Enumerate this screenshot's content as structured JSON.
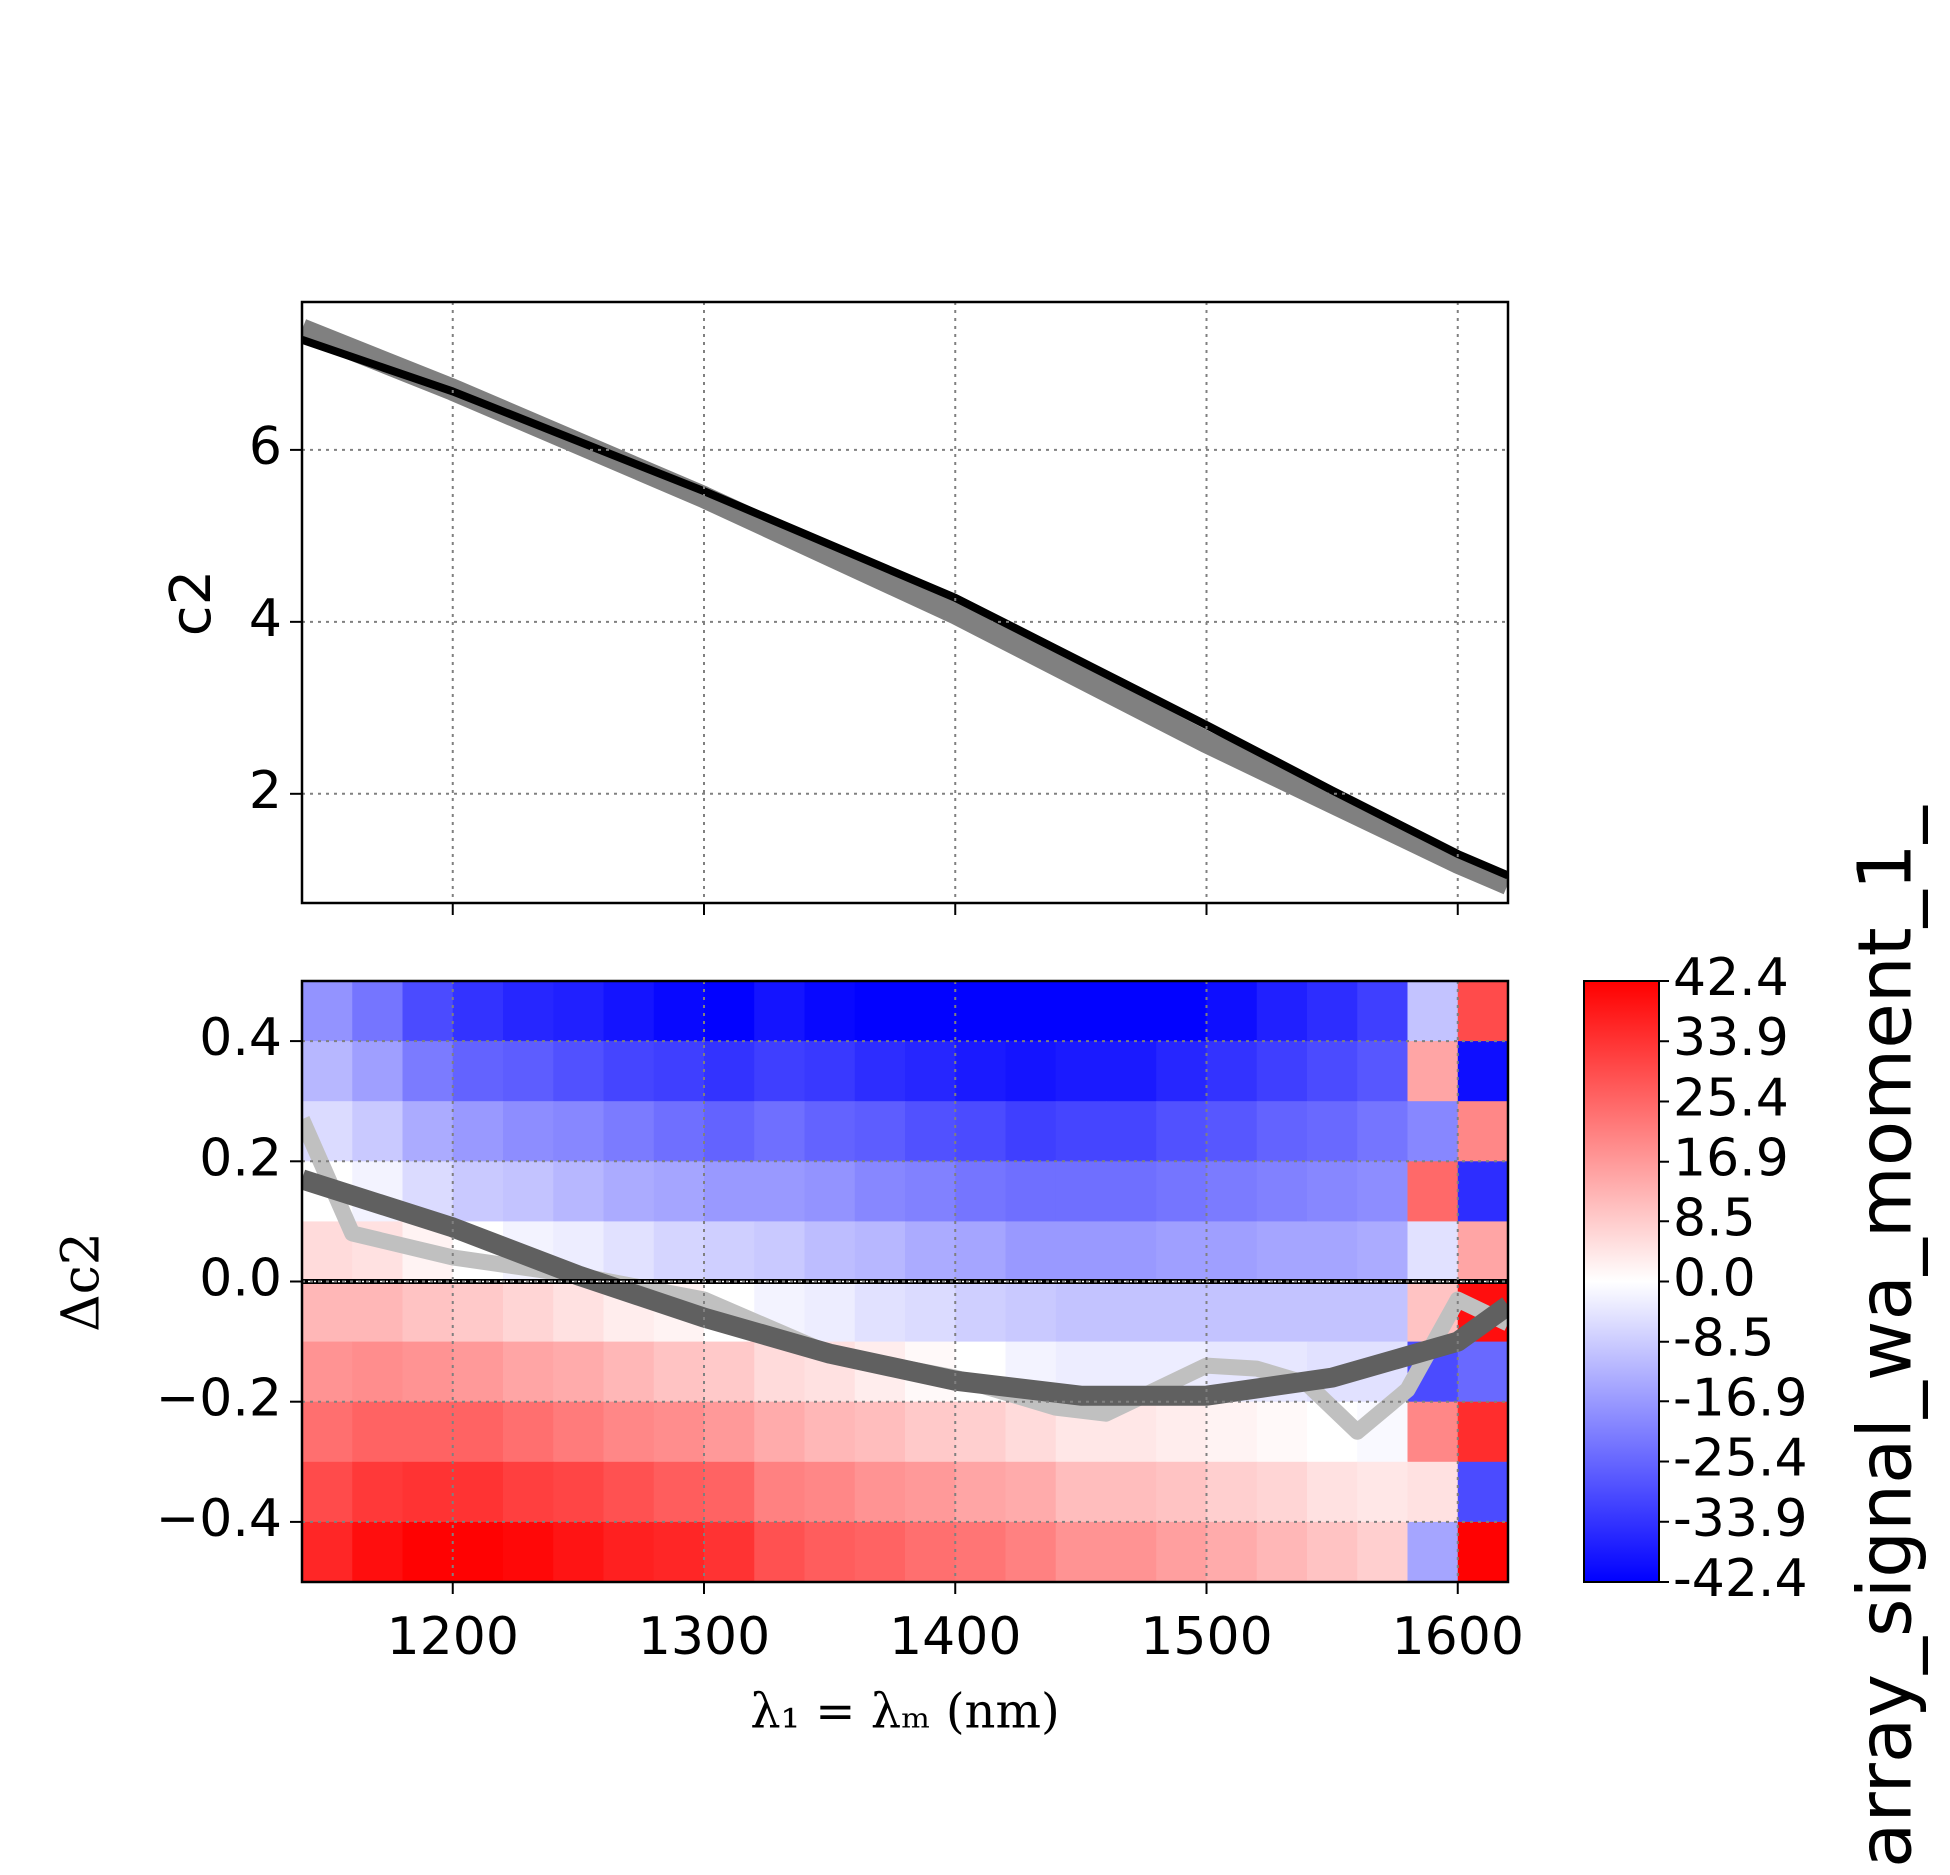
{
  "chart_data": [
    {
      "type": "line",
      "ylabel": "c2",
      "xlim": [
        1140,
        1620
      ],
      "xticks": [
        1200,
        1300,
        1400,
        1500,
        1600
      ],
      "xtick_labels": false,
      "ylim": [
        0.73,
        7.72
      ],
      "yticks": [
        2,
        4,
        6
      ],
      "grid": true,
      "series": [
        {
          "color": "#808080",
          "width": 22,
          "x": [
            1140,
            1200,
            1300,
            1400,
            1500,
            1550,
            1600,
            1620
          ],
          "values": [
            7.4,
            6.7,
            5.45,
            4.1,
            2.6,
            1.9,
            1.2,
            0.95
          ]
        },
        {
          "color": "#000000",
          "width": 8,
          "x": [
            1140,
            1200,
            1300,
            1400,
            1500,
            1550,
            1600,
            1620
          ],
          "values": [
            7.28,
            6.68,
            5.52,
            4.28,
            2.8,
            2.04,
            1.3,
            1.05
          ]
        }
      ]
    },
    {
      "type": "heatmap",
      "ylabel": "Δc2",
      "xlabel": "λ₁ = λₘ (nm)",
      "colorbar_label": "array_signal_wa_moment_1_",
      "xlim": [
        1140,
        1620
      ],
      "xticks": [
        1200,
        1300,
        1400,
        1500,
        1600
      ],
      "ylim": [
        -0.5,
        0.5
      ],
      "yticks": [
        {
          "value": -0.4,
          "label": "−0.4"
        },
        {
          "value": -0.2,
          "label": "−0.2"
        },
        {
          "value": 0,
          "label": "0.0"
        },
        0.2,
        0.4
      ],
      "grid": true,
      "hline": 0,
      "clim": [
        -42.4,
        42.4
      ],
      "cmap": [
        "#0000ff",
        "#ffffff",
        "#ff0000"
      ],
      "cticks": [
        -42.4,
        -33.9,
        -25.4,
        -16.9,
        -8.5,
        {
          "value": 0,
          "label": "0.0"
        },
        8.5,
        16.9,
        25.4,
        33.9,
        42.4
      ],
      "x": [
        1140,
        1160,
        1180,
        1200,
        1220,
        1240,
        1260,
        1280,
        1300,
        1320,
        1340,
        1360,
        1380,
        1400,
        1420,
        1440,
        1460,
        1480,
        1500,
        1520,
        1540,
        1560,
        1580,
        1600,
        1620
      ],
      "y": [
        0.5,
        0.4,
        0.3,
        0.2,
        0.1,
        0,
        -0.1,
        -0.2,
        -0.3,
        -0.4,
        -0.5
      ],
      "z": [
        [
          -18,
          -23,
          -30,
          -34,
          -36,
          -37,
          -39,
          -41,
          -42,
          -39,
          -41,
          -42,
          -42,
          -42,
          -42,
          -42,
          -42,
          -42,
          -40,
          -37,
          -35,
          -32,
          -10,
          30
        ],
        [
          -12,
          -16,
          -22,
          -26,
          -27,
          -29,
          -31,
          -32,
          -34,
          -32,
          -33,
          -35,
          -36,
          -38,
          -39,
          -38,
          -38,
          -36,
          -34,
          -32,
          -30,
          -28,
          15,
          -40
        ],
        [
          -6,
          -9,
          -14,
          -17,
          -19,
          -20,
          -22,
          -24,
          -26,
          -24,
          -26,
          -27,
          -29,
          -30,
          -32,
          -31,
          -31,
          -29,
          -28,
          -26,
          -25,
          -23,
          -20,
          20
        ],
        [
          0,
          -2,
          -6,
          -9,
          -10,
          -12,
          -14,
          -15,
          -17,
          -17,
          -18,
          -20,
          -21,
          -23,
          -24,
          -24,
          -24,
          -23,
          -22,
          -21,
          -20,
          -19,
          25,
          -35
        ],
        [
          6,
          5,
          2,
          0,
          -2,
          -3,
          -5,
          -7,
          -8,
          -9,
          -11,
          -12,
          -14,
          -15,
          -17,
          -17,
          -17,
          -16,
          -16,
          -15,
          -15,
          -14,
          -5,
          15
        ],
        [
          12,
          12,
          10,
          9,
          7,
          5,
          3,
          2,
          0,
          -2,
          -3,
          -5,
          -6,
          -8,
          -9,
          -10,
          -10,
          -10,
          -10,
          -10,
          -10,
          -10,
          10,
          40
        ],
        [
          18,
          19,
          18,
          17,
          15,
          14,
          12,
          10,
          9,
          6,
          5,
          3,
          1,
          0,
          -2,
          -3,
          -3,
          -3,
          -4,
          -4,
          -5,
          -5,
          -30,
          -25
        ],
        [
          24,
          26,
          26,
          26,
          24,
          22,
          20,
          19,
          17,
          14,
          12,
          11,
          9,
          8,
          6,
          4,
          4,
          3,
          2,
          1,
          0,
          -1,
          20,
          35
        ],
        [
          30,
          33,
          34,
          34,
          32,
          31,
          29,
          27,
          26,
          21,
          20,
          18,
          17,
          15,
          14,
          11,
          11,
          10,
          8,
          7,
          5,
          4,
          5,
          -30
        ],
        [
          36,
          40,
          42,
          42,
          41,
          39,
          37,
          36,
          34,
          29,
          27,
          26,
          24,
          23,
          21,
          18,
          18,
          16,
          14,
          12,
          10,
          8,
          -15,
          42
        ]
      ],
      "series": [
        {
          "color": "#c0c0c0",
          "width": 16,
          "x": [
            1140,
            1160,
            1200,
            1250,
            1300,
            1350,
            1400,
            1440,
            1460,
            1500,
            1520,
            1540,
            1560,
            1580,
            1600,
            1620
          ],
          "values": [
            0.27,
            0.08,
            0.04,
            0.01,
            -0.03,
            -0.12,
            -0.16,
            -0.21,
            -0.22,
            -0.14,
            -0.145,
            -0.17,
            -0.25,
            -0.18,
            -0.03,
            -0.07
          ]
        },
        {
          "color": "#606060",
          "width": 20,
          "x": [
            1140,
            1200,
            1250,
            1300,
            1350,
            1400,
            1450,
            1500,
            1550,
            1600,
            1620
          ],
          "values": [
            0.17,
            0.09,
            0.01,
            -0.06,
            -0.12,
            -0.165,
            -0.19,
            -0.19,
            -0.16,
            -0.1,
            -0.04
          ]
        }
      ]
    }
  ]
}
